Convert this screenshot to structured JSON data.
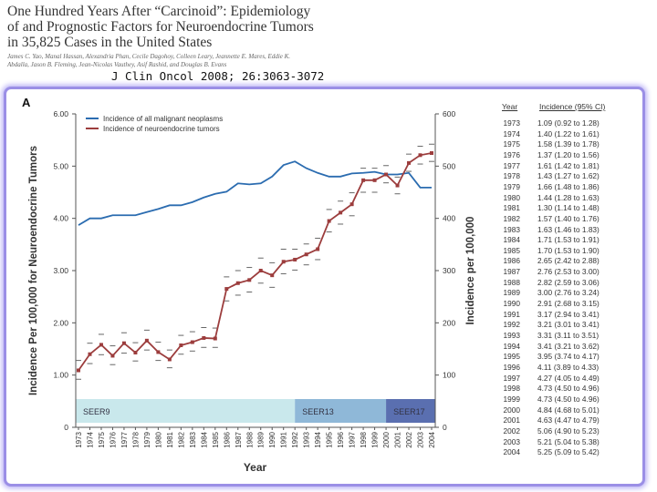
{
  "header": {
    "title": "One Hundred Years After “Carcinoid”: Epidemiology of and Prognostic Factors for Neuroendocrine Tumors in 35,825 Cases in the United States",
    "authors": "James C. Yao, Manal Hassan, Alexandria Phan, Cecile Dagohoy, Colleen Leary, Jeannette E. Mares, Eddie K. Abdalla, Jason B. Fleming, Jean-Nicolas Vauthey, Asif Rashid, and Douglas B. Evans",
    "citation": "J Clin Oncol 2008; 26:3063-3072"
  },
  "chart_data": {
    "type": "line",
    "panel_label": "A",
    "categories": [
      "1973",
      "1974",
      "1975",
      "1976",
      "1977",
      "1978",
      "1979",
      "1980",
      "1981",
      "1982",
      "1983",
      "1984",
      "1985",
      "1986",
      "1987",
      "1988",
      "1989",
      "1990",
      "1991",
      "1992",
      "1993",
      "1994",
      "1995",
      "1996",
      "1997",
      "1998",
      "1999",
      "2000",
      "2001",
      "2002",
      "2003",
      "2004"
    ],
    "series": [
      {
        "name": "Incidence of all malignant neoplasms",
        "axis": "right",
        "color": "#2b6cb0",
        "values": [
          387,
          400,
          400,
          406,
          406,
          406,
          412,
          418,
          425,
          425,
          431,
          440,
          447,
          451,
          467,
          465,
          467,
          480,
          502,
          509,
          496,
          487,
          480,
          480,
          486,
          487,
          489,
          484,
          484,
          487,
          459,
          459
        ]
      },
      {
        "name": "Incidence of neuroendocrine tumors",
        "axis": "left",
        "color": "#9c3d3d",
        "values": [
          1.09,
          1.4,
          1.58,
          1.37,
          1.61,
          1.43,
          1.66,
          1.44,
          1.3,
          1.57,
          1.63,
          1.71,
          1.7,
          2.65,
          2.76,
          2.82,
          3.0,
          2.91,
          3.17,
          3.21,
          3.31,
          3.41,
          3.95,
          4.11,
          4.27,
          4.73,
          4.73,
          4.84,
          4.63,
          5.06,
          5.21,
          5.25
        ],
        "ci_low": [
          0.92,
          1.22,
          1.39,
          1.2,
          1.42,
          1.27,
          1.48,
          1.28,
          1.14,
          1.4,
          1.46,
          1.53,
          1.53,
          2.42,
          2.53,
          2.59,
          2.76,
          2.68,
          2.94,
          3.01,
          3.11,
          3.21,
          3.74,
          3.89,
          4.05,
          4.5,
          4.5,
          4.68,
          4.47,
          4.9,
          5.04,
          5.09
        ],
        "ci_high": [
          1.28,
          1.61,
          1.78,
          1.56,
          1.81,
          1.62,
          1.86,
          1.63,
          1.48,
          1.76,
          1.83,
          1.91,
          1.9,
          2.88,
          3.0,
          3.06,
          3.24,
          3.15,
          3.41,
          3.41,
          3.51,
          3.62,
          4.17,
          4.33,
          4.49,
          4.96,
          4.96,
          5.01,
          4.79,
          5.23,
          5.38,
          5.42
        ]
      }
    ],
    "ylabel_left": "Incidence Per 100,000 for Neuroendocrine Tumors",
    "ylabel_right": "Incidence per 100,000",
    "xlabel": "Year",
    "ylim_left": [
      0,
      6
    ],
    "ylim_right": [
      0,
      600
    ],
    "yticks_left": [
      "0",
      "1.00",
      "2.00",
      "3.00",
      "4.00",
      "5.00",
      "6.00"
    ],
    "yticks_right": [
      "0",
      "100",
      "200",
      "300",
      "400",
      "500",
      "600"
    ],
    "registry_bands": [
      {
        "label": "SEER9",
        "start": "1973",
        "end": "1992",
        "color": "#c9e8ec"
      },
      {
        "label": "SEER13",
        "start": "1992",
        "end": "2000",
        "color": "#8fb8d8"
      },
      {
        "label": "SEER17",
        "start": "2000",
        "end": "2004",
        "color": "#5a6fb0"
      }
    ]
  },
  "table": {
    "col_year": "Year",
    "col_incidence": "Incidence (95% CI)",
    "rows": [
      {
        "year": "1973",
        "incidence": "1.09 (0.92 to 1.28)"
      },
      {
        "year": "1974",
        "incidence": "1.40 (1.22 to 1.61)"
      },
      {
        "year": "1975",
        "incidence": "1.58 (1.39 to 1.78)"
      },
      {
        "year": "1976",
        "incidence": "1.37 (1.20 to 1.56)"
      },
      {
        "year": "1977",
        "incidence": "1.61 (1.42 to 1.81)"
      },
      {
        "year": "1978",
        "incidence": "1.43 (1.27 to 1.62)"
      },
      {
        "year": "1979",
        "incidence": "1.66 (1.48 to 1.86)"
      },
      {
        "year": "1980",
        "incidence": "1.44 (1.28 to 1.63)"
      },
      {
        "year": "1981",
        "incidence": "1.30 (1.14 to 1.48)"
      },
      {
        "year": "1982",
        "incidence": "1.57 (1.40 to 1.76)"
      },
      {
        "year": "1983",
        "incidence": "1.63 (1.46 to 1.83)"
      },
      {
        "year": "1984",
        "incidence": "1.71 (1.53 to 1.91)"
      },
      {
        "year": "1985",
        "incidence": "1.70 (1.53 to 1.90)"
      },
      {
        "year": "1986",
        "incidence": "2.65 (2.42 to 2.88)"
      },
      {
        "year": "1987",
        "incidence": "2.76 (2.53 to 3.00)"
      },
      {
        "year": "1988",
        "incidence": "2.82 (2.59 to 3.06)"
      },
      {
        "year": "1989",
        "incidence": "3.00 (2.76 to 3.24)"
      },
      {
        "year": "1990",
        "incidence": "2.91 (2.68 to 3.15)"
      },
      {
        "year": "1991",
        "incidence": "3.17 (2.94 to 3.41)"
      },
      {
        "year": "1992",
        "incidence": "3.21 (3.01 to 3.41)"
      },
      {
        "year": "1993",
        "incidence": "3.31 (3.11 to 3.51)"
      },
      {
        "year": "1994",
        "incidence": "3.41 (3.21 to 3.62)"
      },
      {
        "year": "1995",
        "incidence": "3.95 (3.74 to 4.17)"
      },
      {
        "year": "1996",
        "incidence": "4.11 (3.89 to 4.33)"
      },
      {
        "year": "1997",
        "incidence": "4.27 (4.05 to 4.49)"
      },
      {
        "year": "1998",
        "incidence": "4.73 (4.50 to 4.96)"
      },
      {
        "year": "1999",
        "incidence": "4.73 (4.50 to 4.96)"
      },
      {
        "year": "2000",
        "incidence": "4.84 (4.68 to 5.01)"
      },
      {
        "year": "2001",
        "incidence": "4.63 (4.47 to 4.79)"
      },
      {
        "year": "2002",
        "incidence": "5.06 (4.90 to 5.23)"
      },
      {
        "year": "2003",
        "incidence": "5.21 (5.04 to 5.38)"
      },
      {
        "year": "2004",
        "incidence": "5.25 (5.09 to 5.42)"
      }
    ]
  }
}
